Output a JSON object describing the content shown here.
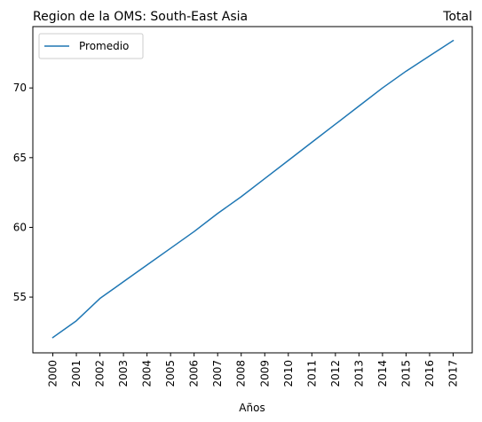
{
  "chart_data": {
    "type": "line",
    "title_left": "Region de la OMS: South-East Asia",
    "title_right": "Total",
    "xlabel": "Años",
    "ylabel": "",
    "x": [
      "2000",
      "2001",
      "2002",
      "2003",
      "2004",
      "2005",
      "2006",
      "2007",
      "2008",
      "2009",
      "2010",
      "2011",
      "2012",
      "2013",
      "2014",
      "2015",
      "2016",
      "2017"
    ],
    "series": [
      {
        "name": "Promedio",
        "color": "#1f77b4",
        "values": [
          52.1,
          53.3,
          54.9,
          56.1,
          57.3,
          58.5,
          59.7,
          61.0,
          62.2,
          63.5,
          64.8,
          66.1,
          67.4,
          68.7,
          70.0,
          71.2,
          72.3,
          73.4
        ]
      }
    ],
    "yticks": [
      55,
      60,
      65,
      70
    ],
    "ylim": [
      51.0,
      74.4
    ],
    "grid": false,
    "legend_position": "upper-left"
  }
}
